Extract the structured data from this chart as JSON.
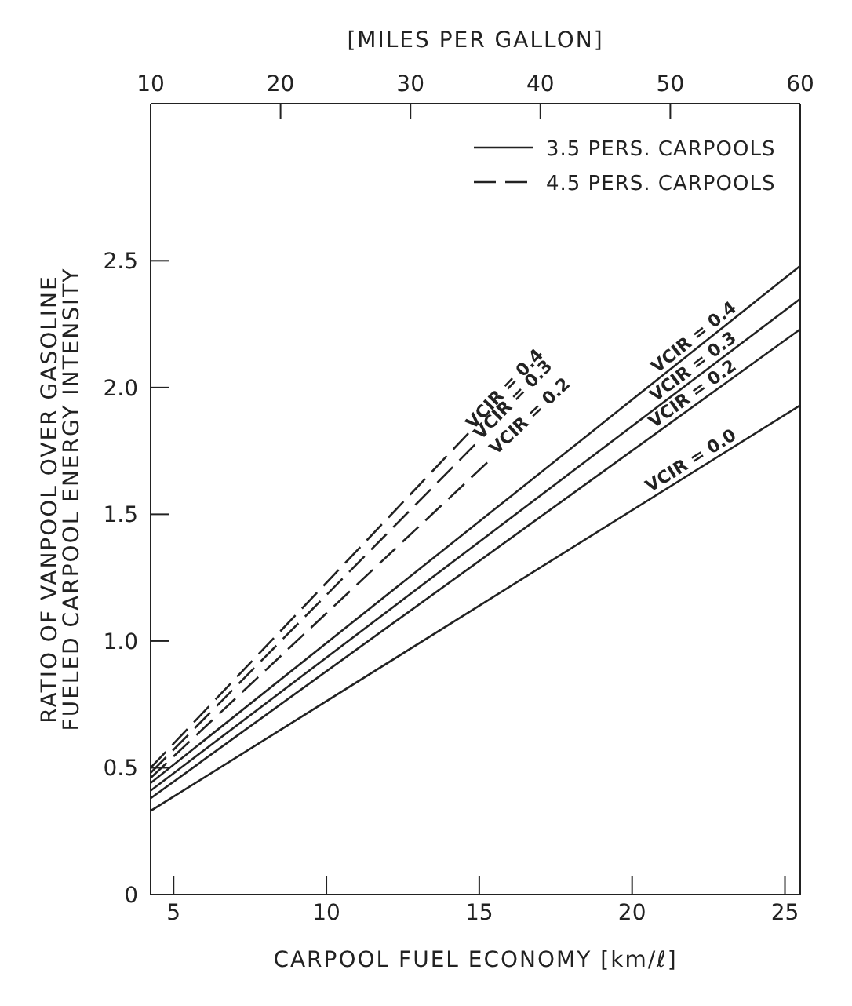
{
  "chart_data": {
    "type": "line",
    "xlabel": "CARPOOL FUEL ECONOMY [km/ℓ]",
    "x2label": "[MILES PER GALLON]",
    "ylabel": "RATIO OF VANPOOL OVER GASOLINE FUELED CARPOOL ENERGY INTENSITY",
    "xlim": [
      4.25,
      25.5
    ],
    "xticks": [
      5,
      10,
      15,
      20,
      25
    ],
    "x2lim": [
      10,
      60
    ],
    "x2ticks": [
      10,
      20,
      30,
      40,
      50,
      60
    ],
    "ylim": [
      0,
      3.12
    ],
    "yticks": [
      0,
      {
        "value": 0.5,
        "label": "0.5"
      },
      {
        "value": 1,
        "label": "1.0"
      },
      {
        "value": 1.5,
        "label": "1.5"
      },
      {
        "value": 2,
        "label": "2.0"
      },
      {
        "value": 2.5,
        "label": "2.5"
      }
    ],
    "grid": false,
    "legend": "top right",
    "marker": "none",
    "annotations": [
      "3.5 PERS. CARPOOLS",
      "4.5 PERS. CARPOOLS"
    ],
    "series": [
      {
        "name": "VCIR = 0.4",
        "color": "#222222",
        "line_style": "dashed",
        "x": [
          4.25,
          14.65
        ],
        "values": [
          0.5,
          1.82
        ]
      },
      {
        "name": "VCIR = 0.3",
        "color": "#222222",
        "line_style": "dashed",
        "x": [
          4.25,
          14.9
        ],
        "values": [
          0.48,
          1.78
        ]
      },
      {
        "name": "VCIR = 0.2",
        "color": "#222222",
        "line_style": "dashed",
        "x": [
          4.25,
          15.4
        ],
        "values": [
          0.46,
          1.72
        ]
      },
      {
        "name": "VCIR = 0.4",
        "color": "#222222",
        "line_style": "solid",
        "x": [
          4.25,
          25.5
        ],
        "values": [
          0.44,
          2.48
        ]
      },
      {
        "name": "VCIR = 0.3",
        "color": "#222222",
        "line_style": "solid",
        "x": [
          4.25,
          25.5
        ],
        "values": [
          0.41,
          2.35
        ]
      },
      {
        "name": "VCIR = 0.2",
        "color": "#222222",
        "line_style": "solid",
        "x": [
          4.25,
          25.5
        ],
        "values": [
          0.38,
          2.23
        ]
      },
      {
        "name": "VCIR = 0.0",
        "color": "#222222",
        "line_style": "solid",
        "x": [
          4.25,
          25.5
        ],
        "values": [
          0.33,
          1.93
        ]
      }
    ]
  }
}
